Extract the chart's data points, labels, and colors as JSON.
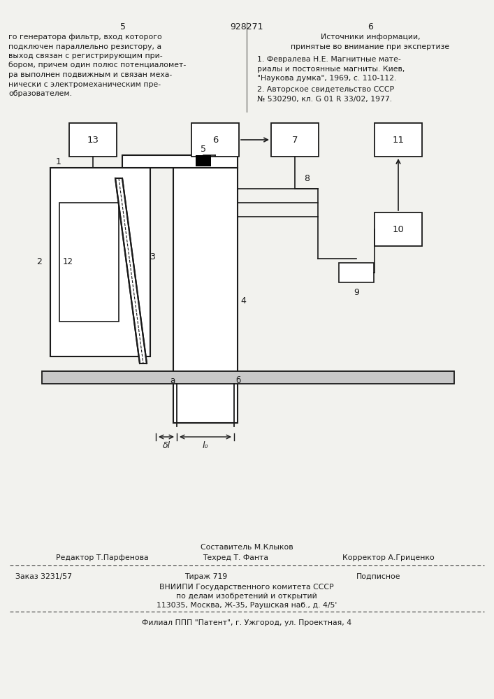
{
  "bg_color": "#f2f2ee",
  "text_color": "#1a1a1a",
  "left_lines": [
    "го генератора фильтр, вход которого",
    "подключен параллельно резистору, а",
    "выход связан с регистрирующим при-",
    "бором, причем один полюс потенциаломет-",
    "ра выполнен подвижным и связан меха-",
    "нически с электромеханическим пре-",
    "образователем."
  ],
  "right_line1": "Источники информации,",
  "right_line2": "принятые во внимание при экспертизе",
  "right_lines3": [
    "1. Февралева Н.Е. Магнитные мате-",
    "риалы и постоянные магниты. Киев,",
    "\"Наукова думка\", 1969, с. 110-112."
  ],
  "right_lines4": [
    "2. Авторское свидетельство СССР",
    "№ 530290, кл. G 01 R 33/02, 1977."
  ],
  "footer_sestavitel": "Составитель М.Клыков",
  "footer_editor": "Редактор Т.Парфенова",
  "footer_tehred": "Техред Т. Фанта",
  "footer_korrektor": "Корректор А.Гриценко",
  "footer_zakaz": "Заказ 3231/57",
  "footer_tirazh": "Тираж 719",
  "footer_podpisnoe": "Подписное",
  "footer_vnipi": "ВНИИПИ Государственного комитета СССР",
  "footer_po": "по делам изобретений и открытий",
  "footer_addr": "113035, Москва, Ж-35, Раушская наб., д. 4/5'",
  "footer_filial": "Филиал ППП \"Патент\", г. Ужгород, ул. Проектная, 4"
}
